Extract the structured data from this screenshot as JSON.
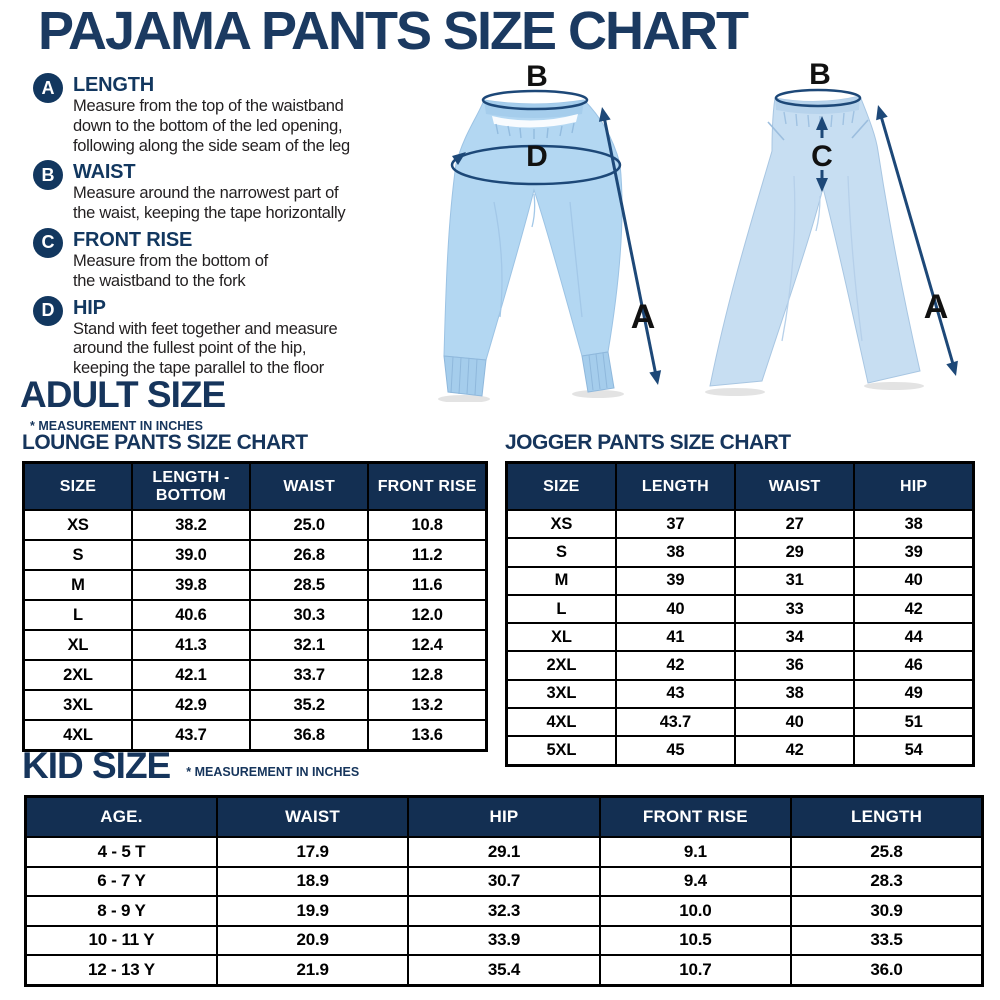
{
  "page": {
    "title": "PAJAMA PANTS SIZE CHART"
  },
  "definitions": [
    {
      "letter": "A",
      "term": "LENGTH",
      "desc": "Measure from the top of the waistband\ndown to the bottom of the led opening,\nfollowing along the side seam of the leg"
    },
    {
      "letter": "B",
      "term": "WAIST",
      "desc": "Measure around the narrowest part of\nthe waist, keeping the tape horizontally"
    },
    {
      "letter": "C",
      "term": "FRONT RISE",
      "desc": "Measure from the bottom of\nthe waistband to the fork"
    },
    {
      "letter": "D",
      "term": "HIP",
      "desc": "Stand with feet together and measure\naround the fullest point of the hip,\nkeeping the tape parallel to the floor"
    }
  ],
  "diagram": {
    "jogger_view": {
      "waist": "B",
      "hip": "D",
      "length": "A"
    },
    "lounge_view": {
      "waist": "B",
      "front_rise": "C",
      "length": "A"
    }
  },
  "colors": {
    "navy": "#16355c",
    "table_header": "#132f52",
    "pant_fill_left": "#b3d7f2",
    "pant_fill_right": "#c7def2",
    "arrow": "#1d4878"
  },
  "adult": {
    "heading": "ADULT SIZE",
    "note": "* MEASUREMENT IN INCHES",
    "lounge": {
      "title": "LOUNGE PANTS SIZE CHART",
      "headers": [
        "SIZE",
        "LENGTH -\nBOTTOM",
        "WAIST",
        "FRONT RISE"
      ],
      "rows": [
        [
          "XS",
          "38.2",
          "25.0",
          "10.8"
        ],
        [
          "S",
          "39.0",
          "26.8",
          "11.2"
        ],
        [
          "M",
          "39.8",
          "28.5",
          "11.6"
        ],
        [
          "L",
          "40.6",
          "30.3",
          "12.0"
        ],
        [
          "XL",
          "41.3",
          "32.1",
          "12.4"
        ],
        [
          "2XL",
          "42.1",
          "33.7",
          "12.8"
        ],
        [
          "3XL",
          "42.9",
          "35.2",
          "13.2"
        ],
        [
          "4XL",
          "43.7",
          "36.8",
          "13.6"
        ]
      ]
    },
    "jogger": {
      "title": "JOGGER PANTS SIZE CHART",
      "headers": [
        "SIZE",
        "LENGTH",
        "WAIST",
        "HIP"
      ],
      "rows": [
        [
          "XS",
          "37",
          "27",
          "38"
        ],
        [
          "S",
          "38",
          "29",
          "39"
        ],
        [
          "M",
          "39",
          "31",
          "40"
        ],
        [
          "L",
          "40",
          "33",
          "42"
        ],
        [
          "XL",
          "41",
          "34",
          "44"
        ],
        [
          "2XL",
          "42",
          "36",
          "46"
        ],
        [
          "3XL",
          "43",
          "38",
          "49"
        ],
        [
          "4XL",
          "43.7",
          "40",
          "51"
        ],
        [
          "5XL",
          "45",
          "42",
          "54"
        ]
      ]
    }
  },
  "kid": {
    "heading": "KID SIZE",
    "note": "* MEASUREMENT IN INCHES",
    "table": {
      "headers": [
        "AGE.",
        "WAIST",
        "HIP",
        "FRONT RISE",
        "LENGTH"
      ],
      "rows": [
        [
          "4 - 5 T",
          "17.9",
          "29.1",
          "9.1",
          "25.8"
        ],
        [
          "6 - 7 Y",
          "18.9",
          "30.7",
          "9.4",
          "28.3"
        ],
        [
          "8 - 9 Y",
          "19.9",
          "32.3",
          "10.0",
          "30.9"
        ],
        [
          "10 - 11 Y",
          "20.9",
          "33.9",
          "10.5",
          "33.5"
        ],
        [
          "12 - 13 Y",
          "21.9",
          "35.4",
          "10.7",
          "36.0"
        ]
      ]
    }
  }
}
